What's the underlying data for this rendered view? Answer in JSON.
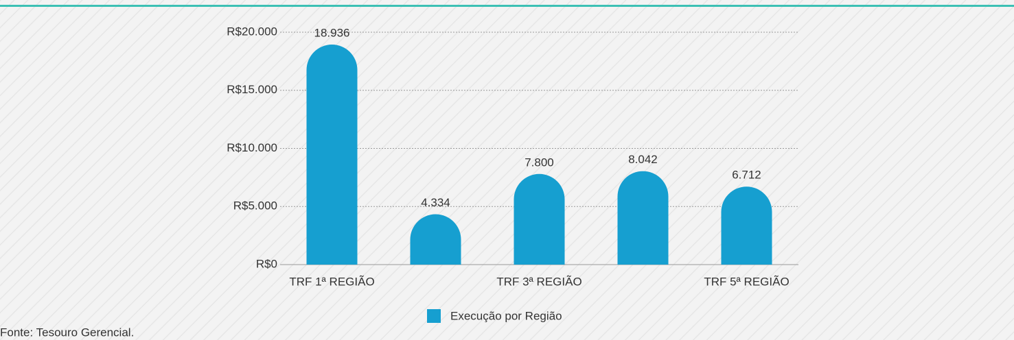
{
  "chart_data": {
    "type": "bar",
    "categories": [
      "TRF 1ª REGIÃO",
      null,
      "TRF 3ª REGIÃO",
      null,
      "TRF 5ª REGIÃO"
    ],
    "series": [
      {
        "name": "Execução por Região",
        "color": "#169fd0",
        "values": [
          18936,
          4334,
          7800,
          8042,
          6712
        ],
        "value_labels": [
          "18.936",
          "4.334",
          "7.800",
          "8.042",
          "6.712"
        ]
      }
    ],
    "ylim": [
      0,
      20000
    ],
    "yticks": [
      {
        "value": 0,
        "label": "R$0"
      },
      {
        "value": 5000,
        "label": "R$5.000"
      },
      {
        "value": 10000,
        "label": "R$10.000"
      },
      {
        "value": 15000,
        "label": "R$15.000"
      },
      {
        "value": 20000,
        "label": "R$20.000"
      }
    ],
    "grid": true,
    "legend": "bottom",
    "source": "Fonte: Tesouro Gerencial."
  }
}
